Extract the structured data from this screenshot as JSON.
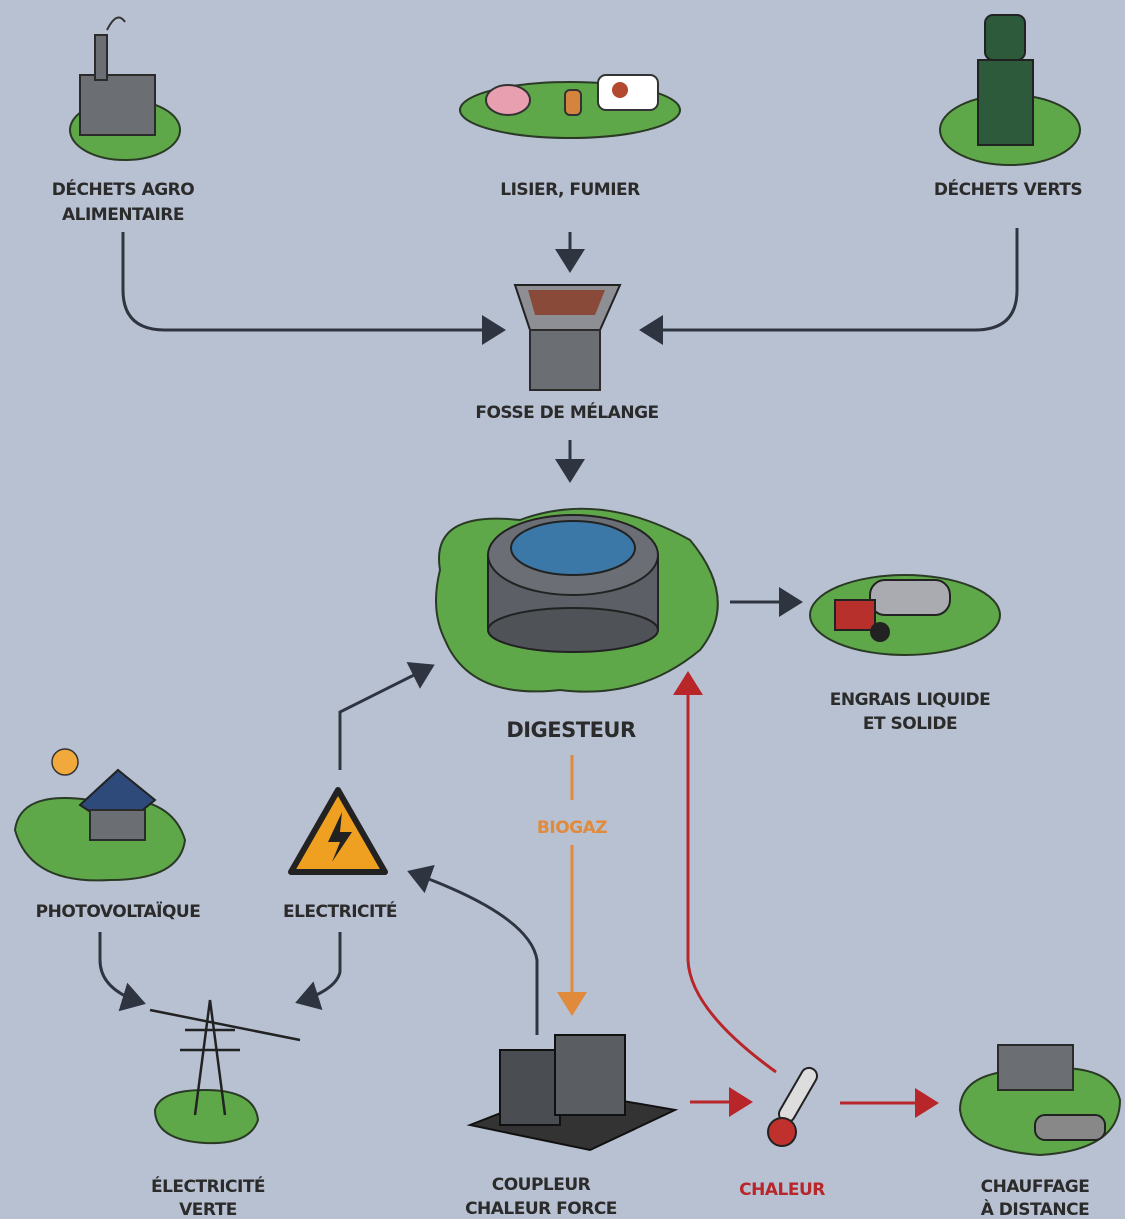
{
  "nodes": [
    {
      "label": [
        "DÉCHETS AGRO",
        "ALIMENTAIRE"
      ]
    },
    {
      "label": [
        "LISIER, FUMIER"
      ]
    },
    {
      "label": [
        "DÉCHETS VERTS"
      ]
    },
    {
      "label": [
        "FOSSE DE MÉLANGE"
      ]
    },
    {
      "label": [
        "DIGESTEUR"
      ]
    },
    {
      "label": [
        "ENGRAIS LIQUIDE",
        "ET SOLIDE"
      ]
    },
    {
      "label": [
        "PHOTOVOLTAÏQUE"
      ]
    },
    {
      "label": [
        "ELECTRICITÉ"
      ]
    },
    {
      "label": [
        "ÉLECTRICITÉ",
        "VERTE"
      ]
    },
    {
      "label": [
        "COUPLEUR",
        "CHALEUR FORCE"
      ]
    },
    {
      "label": [
        "CHALEUR"
      ]
    },
    {
      "label": [
        "CHAUFFAGE",
        "À DISTANCE"
      ]
    }
  ],
  "edge_labels": [
    "BIOGAZ"
  ]
}
